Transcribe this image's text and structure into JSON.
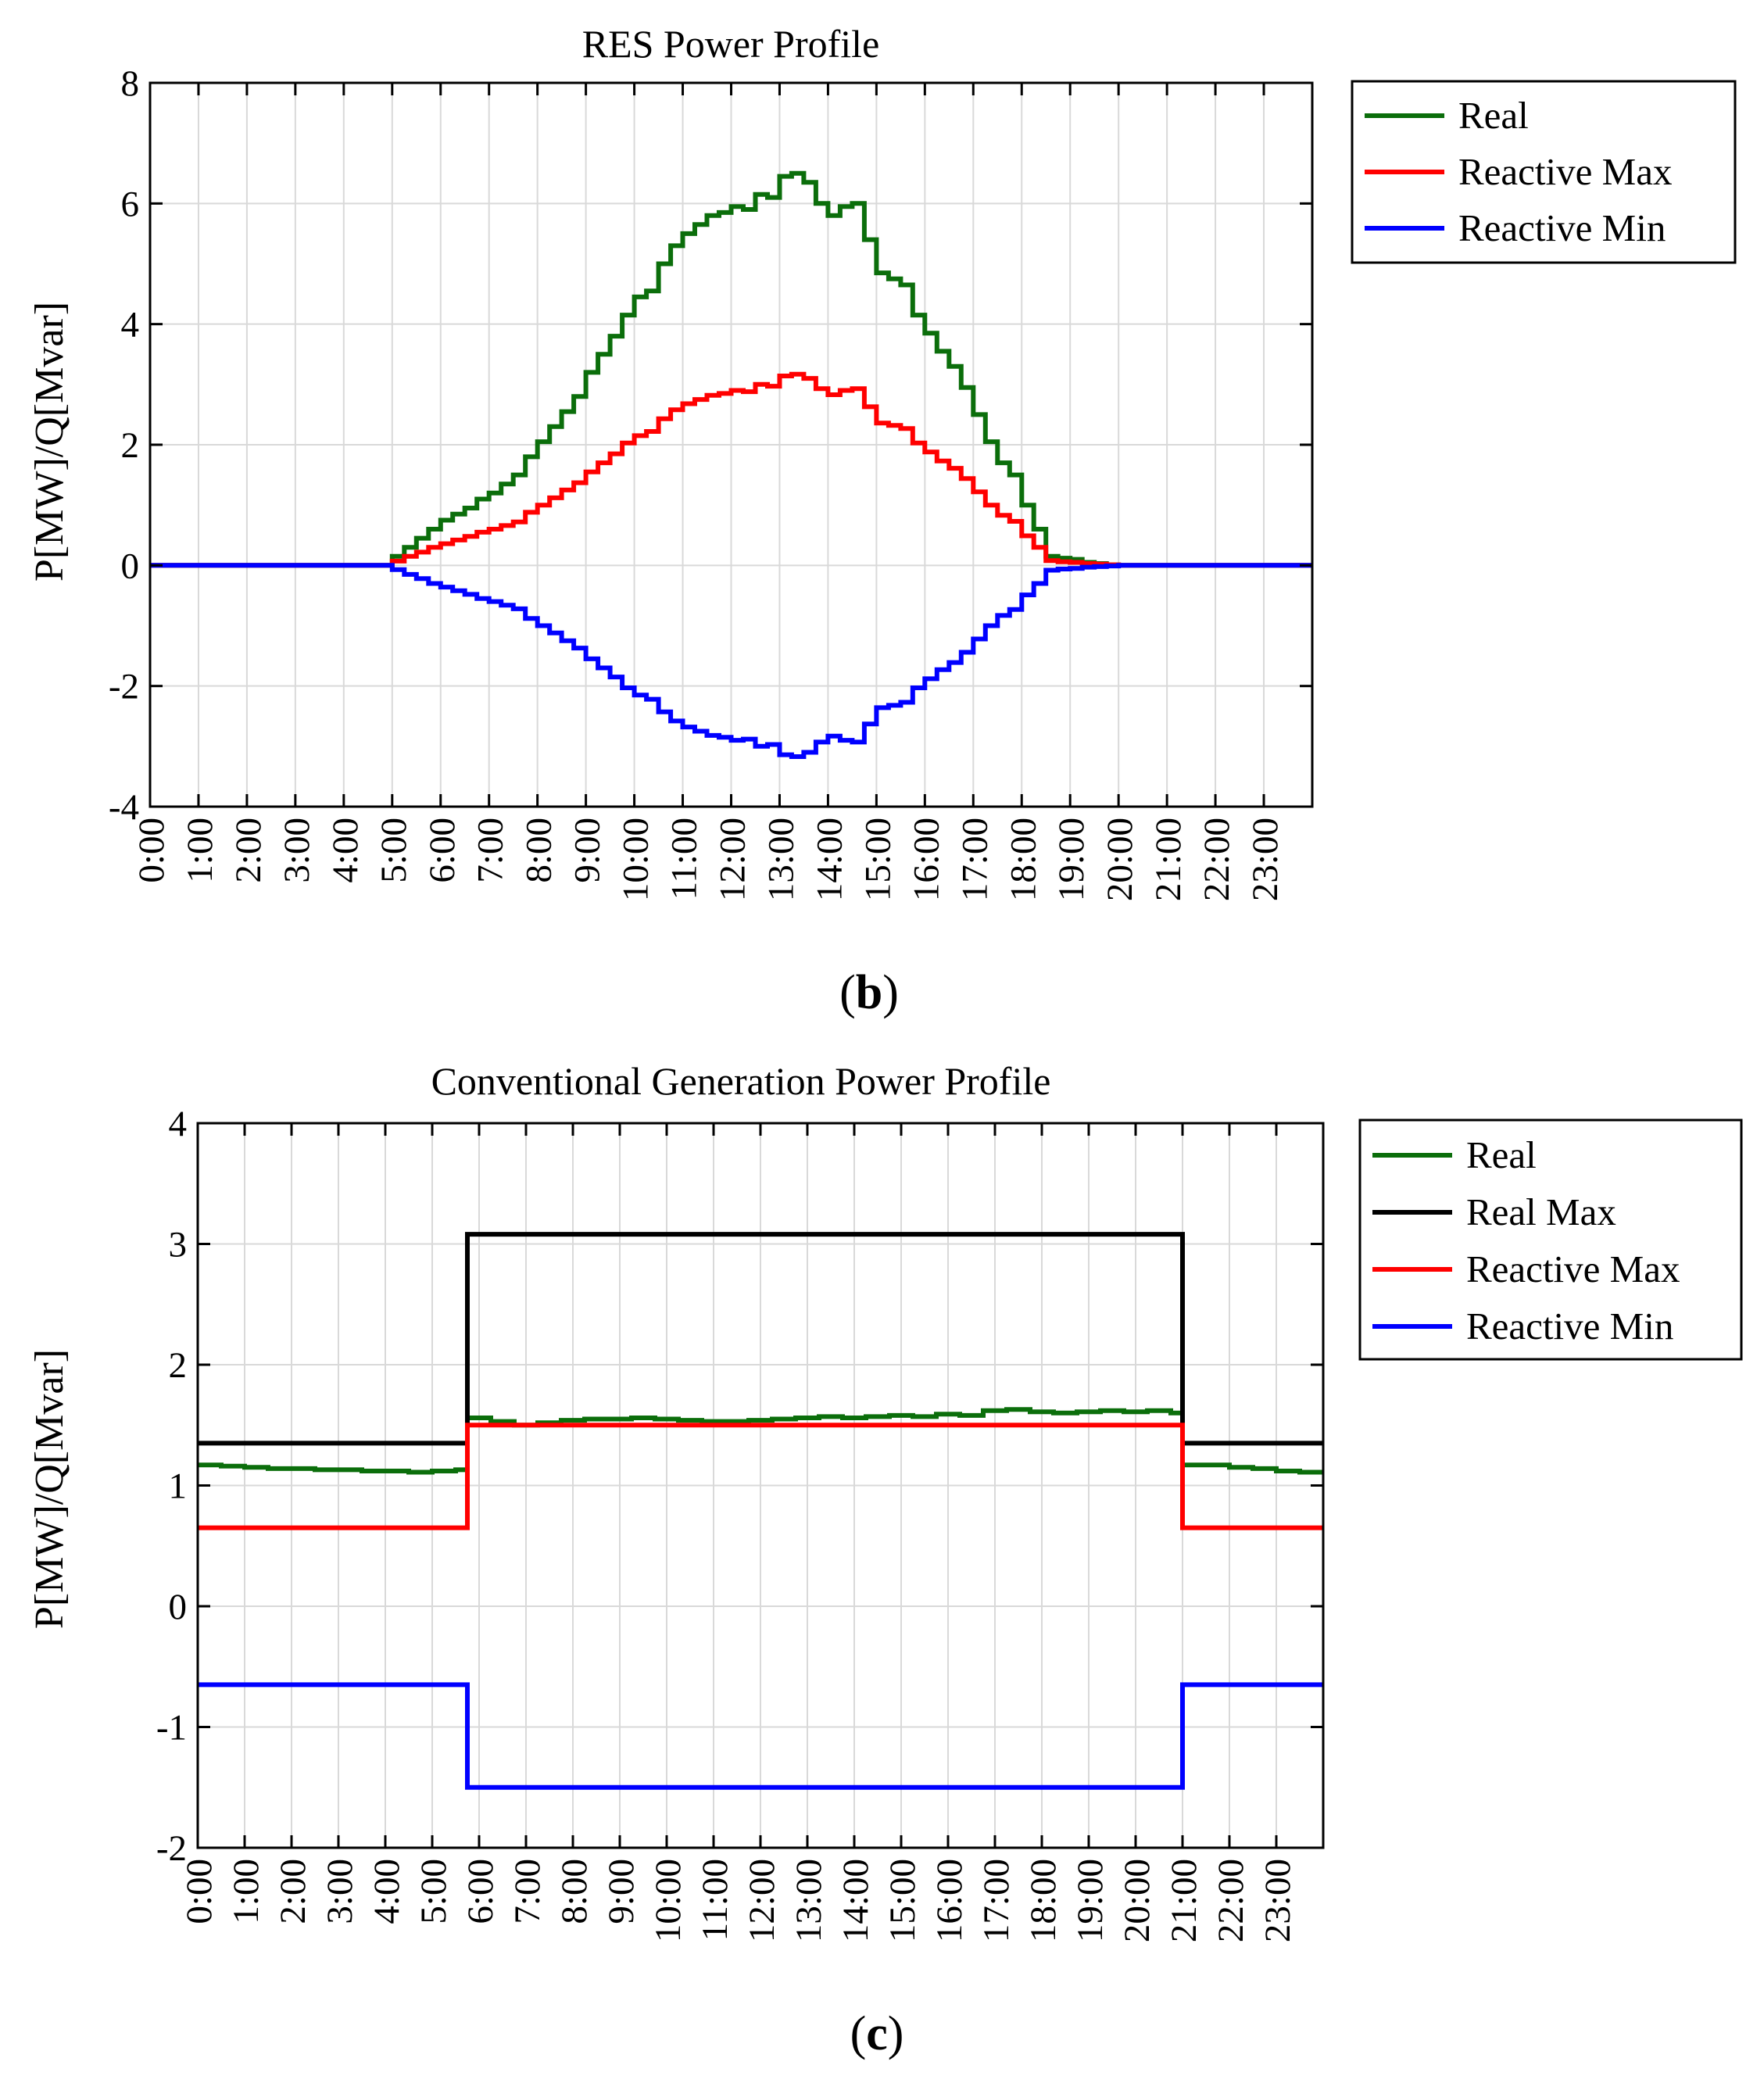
{
  "charts_meta": {
    "x_tick_labels": [
      "0:00",
      "1:00",
      "2:00",
      "3:00",
      "4:00",
      "5:00",
      "6:00",
      "7:00",
      "8:00",
      "9:00",
      "10:00",
      "11:00",
      "12:00",
      "13:00",
      "14:00",
      "15:00",
      "16:00",
      "17:00",
      "18:00",
      "19:00",
      "20:00",
      "21:00",
      "22:00",
      "23:00"
    ]
  },
  "colors": {
    "real": "#0b6e0b",
    "real_max": "#000000",
    "reactive_max": "#ff0000",
    "reactive_min": "#0000ff",
    "grid": "#d9d9d9"
  },
  "chart_data": [
    {
      "id": "b",
      "type": "line",
      "step": true,
      "title": "RES Power Profile",
      "panel_label": "b",
      "ylabel": "P[MW]/Q[Mvar]",
      "xlabel": "",
      "xlim": [
        0,
        24
      ],
      "ylim": [
        -4,
        8
      ],
      "yticks": [
        -4,
        -2,
        0,
        2,
        4,
        6,
        8
      ],
      "xtick_hours": [
        0,
        1,
        2,
        3,
        4,
        5,
        6,
        7,
        8,
        9,
        10,
        11,
        12,
        13,
        14,
        15,
        16,
        17,
        18,
        19,
        20,
        21,
        22,
        23
      ],
      "grid": true,
      "legend": "outside-right",
      "step_hours": 0.25,
      "series": [
        {
          "name": "Real",
          "color_key": "real",
          "hours": [
            0,
            5,
            5.25,
            5.5,
            5.75,
            6,
            6.25,
            6.5,
            6.75,
            7,
            7.25,
            7.5,
            7.75,
            8,
            8.25,
            8.5,
            8.75,
            9,
            9.25,
            9.5,
            9.75,
            10,
            10.25,
            10.5,
            10.75,
            11,
            11.25,
            11.5,
            11.75,
            12,
            12.25,
            12.5,
            12.75,
            13,
            13.25,
            13.5,
            13.75,
            14,
            14.25,
            14.5,
            14.75,
            15,
            15.25,
            15.5,
            15.75,
            16,
            16.25,
            16.5,
            16.75,
            17,
            17.25,
            17.5,
            17.75,
            18,
            18.25,
            18.5,
            18.75,
            19,
            19.25,
            19.5,
            19.75,
            20,
            24
          ],
          "values": [
            0,
            0.15,
            0.3,
            0.45,
            0.6,
            0.75,
            0.85,
            0.95,
            1.1,
            1.2,
            1.35,
            1.5,
            1.8,
            2.05,
            2.3,
            2.55,
            2.8,
            3.2,
            3.5,
            3.8,
            4.15,
            4.45,
            4.55,
            5.0,
            5.3,
            5.5,
            5.65,
            5.8,
            5.85,
            5.95,
            5.9,
            6.15,
            6.1,
            6.45,
            6.5,
            6.35,
            6.0,
            5.8,
            5.95,
            6.0,
            5.4,
            4.85,
            4.75,
            4.65,
            4.15,
            3.85,
            3.55,
            3.3,
            2.95,
            2.5,
            2.05,
            1.7,
            1.5,
            1.0,
            0.6,
            0.15,
            0.12,
            0.1,
            0.05,
            0.03,
            0.01,
            0,
            0
          ]
        },
        {
          "name": "Reactive Max",
          "color_key": "reactive_max",
          "hours": [
            0,
            5,
            5.25,
            5.5,
            5.75,
            6,
            6.25,
            6.5,
            6.75,
            7,
            7.25,
            7.5,
            7.75,
            8,
            8.25,
            8.5,
            8.75,
            9,
            9.25,
            9.5,
            9.75,
            10,
            10.25,
            10.5,
            10.75,
            11,
            11.25,
            11.5,
            11.75,
            12,
            12.25,
            12.5,
            12.75,
            13,
            13.25,
            13.5,
            13.75,
            14,
            14.25,
            14.5,
            14.75,
            15,
            15.25,
            15.5,
            15.75,
            16,
            16.25,
            16.5,
            16.75,
            17,
            17.25,
            17.5,
            17.75,
            18,
            18.25,
            18.5,
            18.75,
            19,
            19.25,
            19.5,
            19.75,
            20,
            24
          ],
          "values": [
            0,
            0.07,
            0.15,
            0.22,
            0.3,
            0.36,
            0.42,
            0.48,
            0.55,
            0.6,
            0.66,
            0.72,
            0.88,
            1.0,
            1.12,
            1.25,
            1.37,
            1.55,
            1.7,
            1.85,
            2.03,
            2.15,
            2.22,
            2.43,
            2.58,
            2.68,
            2.75,
            2.82,
            2.85,
            2.9,
            2.88,
            3.0,
            2.97,
            3.14,
            3.17,
            3.1,
            2.93,
            2.83,
            2.9,
            2.93,
            2.63,
            2.36,
            2.32,
            2.27,
            2.03,
            1.88,
            1.73,
            1.61,
            1.44,
            1.22,
            1.0,
            0.83,
            0.73,
            0.49,
            0.3,
            0.08,
            0.06,
            0.05,
            0.03,
            0.02,
            0.01,
            0,
            0
          ]
        },
        {
          "name": "Reactive Min",
          "color_key": "reactive_min",
          "hours": [
            0,
            5,
            5.25,
            5.5,
            5.75,
            6,
            6.25,
            6.5,
            6.75,
            7,
            7.25,
            7.5,
            7.75,
            8,
            8.25,
            8.5,
            8.75,
            9,
            9.25,
            9.5,
            9.75,
            10,
            10.25,
            10.5,
            10.75,
            11,
            11.25,
            11.5,
            11.75,
            12,
            12.25,
            12.5,
            12.75,
            13,
            13.25,
            13.5,
            13.75,
            14,
            14.25,
            14.5,
            14.75,
            15,
            15.25,
            15.5,
            15.75,
            16,
            16.25,
            16.5,
            16.75,
            17,
            17.25,
            17.5,
            17.75,
            18,
            18.25,
            18.5,
            18.75,
            19,
            19.25,
            19.5,
            19.75,
            20,
            24
          ],
          "values": [
            0,
            -0.07,
            -0.15,
            -0.22,
            -0.3,
            -0.36,
            -0.42,
            -0.48,
            -0.55,
            -0.6,
            -0.66,
            -0.72,
            -0.88,
            -1.0,
            -1.12,
            -1.25,
            -1.37,
            -1.55,
            -1.7,
            -1.85,
            -2.03,
            -2.15,
            -2.22,
            -2.43,
            -2.58,
            -2.68,
            -2.75,
            -2.82,
            -2.85,
            -2.9,
            -2.88,
            -3.0,
            -2.97,
            -3.14,
            -3.17,
            -3.1,
            -2.93,
            -2.83,
            -2.9,
            -2.93,
            -2.63,
            -2.36,
            -2.32,
            -2.27,
            -2.03,
            -1.88,
            -1.73,
            -1.61,
            -1.44,
            -1.22,
            -1.0,
            -0.83,
            -0.73,
            -0.49,
            -0.3,
            -0.08,
            -0.06,
            -0.05,
            -0.03,
            -0.02,
            -0.01,
            0,
            0
          ]
        }
      ]
    },
    {
      "id": "c",
      "type": "line",
      "step": true,
      "title": "Conventional Generation Power Profile",
      "panel_label": "c",
      "ylabel": "P[MW]/Q[Mvar]",
      "xlabel": "",
      "xlim": [
        0,
        24
      ],
      "ylim": [
        -2,
        4
      ],
      "yticks": [
        -2,
        -1,
        0,
        1,
        2,
        3,
        4
      ],
      "xtick_hours": [
        0,
        1,
        2,
        3,
        4,
        5,
        6,
        7,
        8,
        9,
        10,
        11,
        12,
        13,
        14,
        15,
        16,
        17,
        18,
        19,
        20,
        21,
        22,
        23
      ],
      "grid": true,
      "legend": "outside-right",
      "series": [
        {
          "name": "Real",
          "color_key": "real",
          "hours": [
            0,
            0.5,
            1,
            1.5,
            2,
            2.5,
            3,
            3.5,
            4,
            4.5,
            5,
            5.5,
            5.75,
            6.25,
            6.75,
            7.25,
            7.75,
            8.25,
            8.75,
            9.25,
            9.75,
            10.25,
            10.75,
            11.25,
            11.75,
            12.25,
            12.75,
            13.25,
            13.75,
            14.25,
            14.75,
            15.25,
            15.75,
            16.25,
            16.75,
            17.25,
            17.75,
            18.25,
            18.75,
            19.25,
            19.75,
            20.25,
            20.75,
            21,
            21.5,
            22,
            22.5,
            23,
            23.5,
            24
          ],
          "values": [
            1.17,
            1.16,
            1.15,
            1.14,
            1.14,
            1.13,
            1.13,
            1.12,
            1.12,
            1.11,
            1.12,
            1.13,
            1.56,
            1.53,
            1.5,
            1.52,
            1.54,
            1.55,
            1.55,
            1.56,
            1.55,
            1.54,
            1.53,
            1.53,
            1.54,
            1.55,
            1.56,
            1.57,
            1.56,
            1.57,
            1.58,
            1.57,
            1.59,
            1.58,
            1.62,
            1.63,
            1.61,
            1.6,
            1.61,
            1.62,
            1.61,
            1.62,
            1.6,
            1.17,
            1.17,
            1.15,
            1.14,
            1.12,
            1.11,
            1.11
          ]
        },
        {
          "name": "Real Max",
          "color_key": "real_max",
          "hours": [
            0,
            5.75,
            21,
            24
          ],
          "values": [
            1.35,
            3.08,
            1.35,
            1.35
          ]
        },
        {
          "name": "Reactive Max",
          "color_key": "reactive_max",
          "hours": [
            0,
            5.75,
            21,
            24
          ],
          "values": [
            0.65,
            1.5,
            0.65,
            0.65
          ]
        },
        {
          "name": "Reactive Min",
          "color_key": "reactive_min",
          "hours": [
            0,
            5.75,
            21,
            24
          ],
          "values": [
            -0.65,
            -1.5,
            -0.65,
            -0.65
          ]
        }
      ]
    }
  ]
}
